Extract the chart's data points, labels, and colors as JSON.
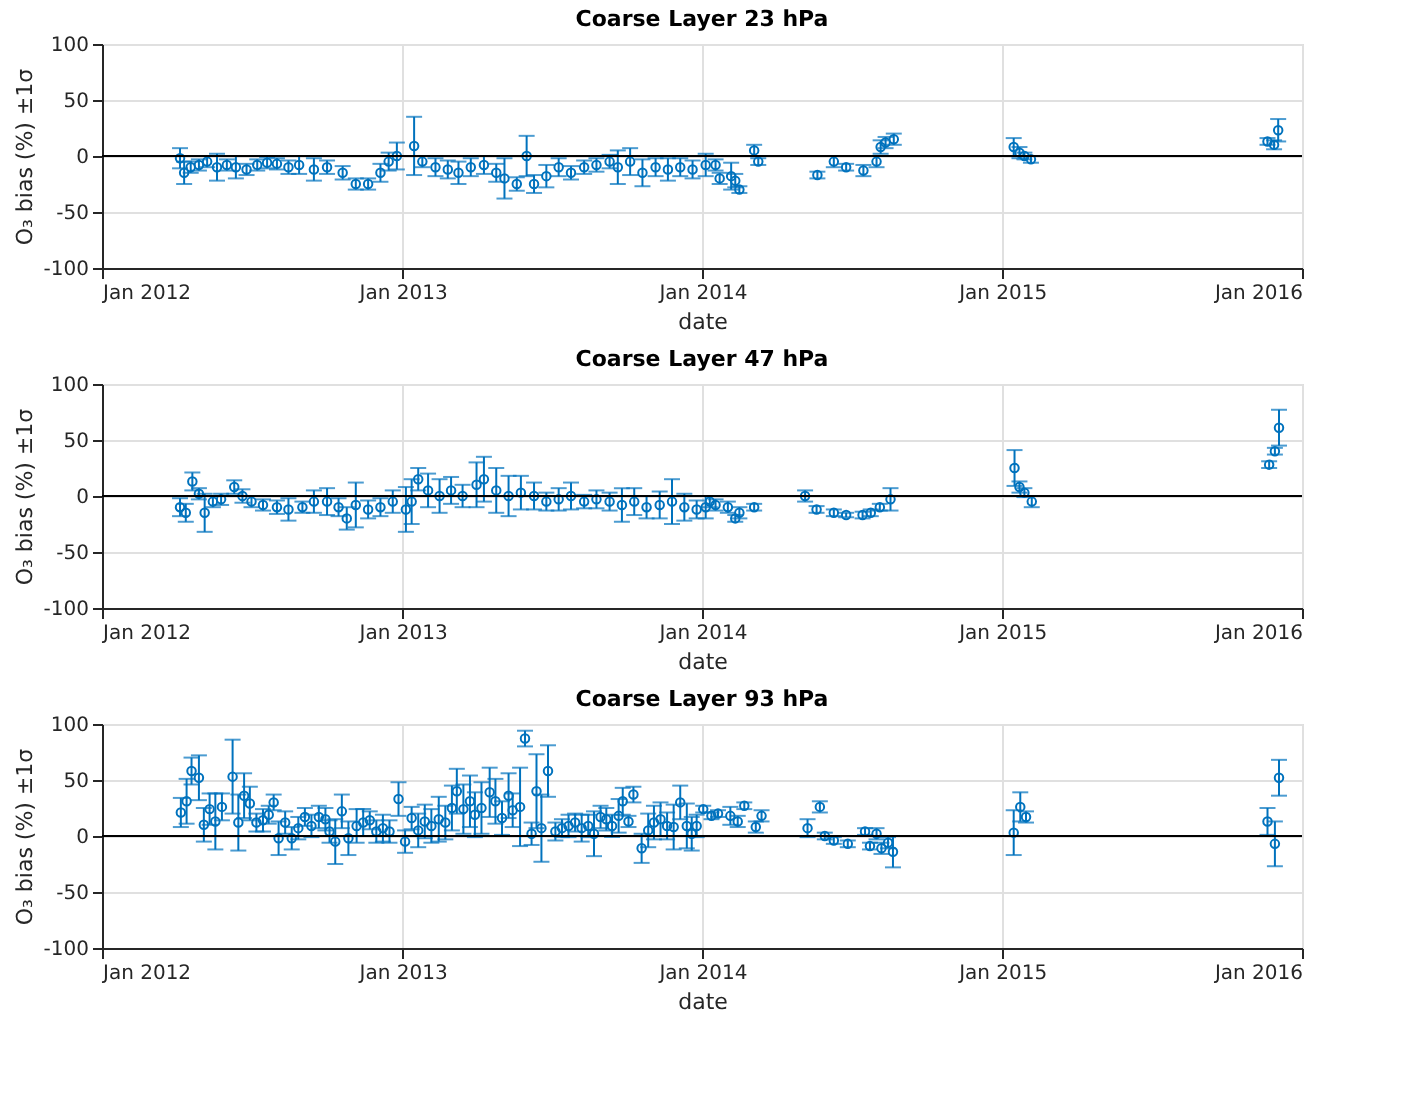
{
  "chart_data": [
    {
      "type": "scatter",
      "title": "Coarse Layer 23 hPa",
      "xlabel": "date",
      "ylabel": "O₃ bias (%) ±1σ",
      "marker": "circle",
      "grid": true,
      "xlim": [
        "2012-01-01",
        "2016-01-01"
      ],
      "xticks": [
        {
          "value": "2012-01-01",
          "label": "Jan 2012"
        },
        {
          "value": "2013-01-01",
          "label": "Jan 2013"
        },
        {
          "value": "2014-01-01",
          "label": "Jan 2014"
        },
        {
          "value": "2015-01-01",
          "label": "Jan 2015"
        },
        {
          "value": "2016-01-01",
          "label": "Jan 2016"
        }
      ],
      "ylim": [
        -100,
        100
      ],
      "yticks": [
        -100,
        -50,
        0,
        50,
        100
      ],
      "ref_lines": [
        {
          "axis": "y",
          "value": 0,
          "color": "#000000"
        }
      ],
      "series": [
        {
          "color": "#0072bd",
          "x": [
            "2012-04-05",
            "2012-04-10",
            "2012-04-18",
            "2012-04-28",
            "2012-05-08",
            "2012-05-20",
            "2012-06-01",
            "2012-06-12",
            "2012-06-25",
            "2012-07-08",
            "2012-07-20",
            "2012-08-01",
            "2012-08-15",
            "2012-08-28",
            "2012-09-15",
            "2012-10-01",
            "2012-10-20",
            "2012-11-05",
            "2012-11-20",
            "2012-12-05",
            "2012-12-15",
            "2012-12-25",
            "2013-01-15",
            "2013-01-25",
            "2013-02-10",
            "2013-02-25",
            "2013-03-10",
            "2013-03-25",
            "2013-04-10",
            "2013-04-25",
            "2013-05-05",
            "2013-05-20",
            "2013-06-01",
            "2013-06-10",
            "2013-06-25",
            "2013-07-10",
            "2013-07-25",
            "2013-08-10",
            "2013-08-25",
            "2013-09-10",
            "2013-09-20",
            "2013-10-05",
            "2013-10-20",
            "2013-11-05",
            "2013-11-20",
            "2013-12-05",
            "2013-12-20",
            "2014-01-05",
            "2014-01-17",
            "2014-01-22",
            "2014-02-05",
            "2014-02-10",
            "2014-02-15",
            "2014-03-05",
            "2014-03-10",
            "2014-05-21",
            "2014-06-10",
            "2014-06-25",
            "2014-07-16",
            "2014-08-01",
            "2014-08-06",
            "2014-08-12",
            "2014-08-22",
            "2015-01-15",
            "2015-01-22",
            "2015-01-28",
            "2015-02-05",
            "2015-11-20",
            "2015-11-28",
            "2015-12-03"
          ],
          "values": [
            -2,
            -15,
            -10,
            -8,
            -5,
            -10,
            -8,
            -10,
            -12,
            -8,
            -6,
            -7,
            -10,
            -8,
            -12,
            -10,
            -15,
            -25,
            -25,
            -15,
            -5,
            0,
            9,
            -5,
            -10,
            -12,
            -15,
            -10,
            -8,
            -15,
            -20,
            -25,
            0,
            -25,
            -18,
            -10,
            -15,
            -10,
            -8,
            -5,
            -10,
            -5,
            -15,
            -10,
            -12,
            -10,
            -12,
            -8,
            -8,
            -20,
            -18,
            -22,
            -30,
            5,
            -5,
            -17,
            -5,
            -10,
            -13,
            -5,
            8,
            12,
            15,
            8,
            3,
            0,
            -3,
            13,
            10,
            23
          ],
          "errors": [
            9,
            10,
            5,
            5,
            5,
            12,
            5,
            10,
            5,
            5,
            5,
            5,
            6,
            8,
            10,
            6,
            6,
            5,
            5,
            8,
            8,
            12,
            26,
            5,
            8,
            8,
            10,
            8,
            8,
            8,
            18,
            6,
            18,
            8,
            10,
            8,
            6,
            6,
            6,
            6,
            15,
            12,
            12,
            8,
            10,
            8,
            8,
            10,
            5,
            5,
            12,
            6,
            3,
            5,
            3,
            3,
            5,
            3,
            5,
            5,
            6,
            5,
            5,
            8,
            5,
            3,
            3,
            3,
            4,
            10
          ]
        }
      ]
    },
    {
      "type": "scatter",
      "title": "Coarse Layer 47 hPa",
      "xlabel": "date",
      "ylabel": "O₃ bias (%) ±1σ",
      "marker": "circle",
      "grid": true,
      "xlim": [
        "2012-01-01",
        "2016-01-01"
      ],
      "xticks": [
        {
          "value": "2012-01-01",
          "label": "Jan 2012"
        },
        {
          "value": "2013-01-01",
          "label": "Jan 2013"
        },
        {
          "value": "2014-01-01",
          "label": "Jan 2014"
        },
        {
          "value": "2015-01-01",
          "label": "Jan 2015"
        },
        {
          "value": "2016-01-01",
          "label": "Jan 2016"
        }
      ],
      "ylim": [
        -100,
        100
      ],
      "yticks": [
        -100,
        -50,
        0,
        50,
        100
      ],
      "ref_lines": [
        {
          "axis": "y",
          "value": 0,
          "color": "#000000"
        }
      ],
      "series": [
        {
          "color": "#0072bd",
          "x": [
            "2012-04-05",
            "2012-04-12",
            "2012-04-20",
            "2012-04-28",
            "2012-05-05",
            "2012-05-15",
            "2012-05-25",
            "2012-06-10",
            "2012-06-20",
            "2012-07-01",
            "2012-07-15",
            "2012-08-01",
            "2012-08-15",
            "2012-09-01",
            "2012-09-15",
            "2012-10-01",
            "2012-10-15",
            "2012-10-25",
            "2012-11-05",
            "2012-11-20",
            "2012-12-05",
            "2012-12-20",
            "2013-01-05",
            "2013-01-12",
            "2013-01-20",
            "2013-02-01",
            "2013-02-15",
            "2013-03-01",
            "2013-03-15",
            "2013-04-01",
            "2013-04-10",
            "2013-04-25",
            "2013-05-10",
            "2013-05-25",
            "2013-06-10",
            "2013-06-25",
            "2013-07-10",
            "2013-07-25",
            "2013-08-10",
            "2013-08-25",
            "2013-09-10",
            "2013-09-25",
            "2013-10-10",
            "2013-10-25",
            "2013-11-10",
            "2013-11-25",
            "2013-12-10",
            "2013-12-25",
            "2014-01-05",
            "2014-01-10",
            "2014-01-17",
            "2014-02-01",
            "2014-02-10",
            "2014-02-15",
            "2014-03-05",
            "2014-05-06",
            "2014-05-20",
            "2014-06-10",
            "2014-06-25",
            "2014-07-15",
            "2014-07-25",
            "2014-08-05",
            "2014-08-18",
            "2015-01-16",
            "2015-01-22",
            "2015-01-28",
            "2015-02-06",
            "2015-11-22",
            "2015-11-29",
            "2015-12-04"
          ],
          "values": [
            -10,
            -15,
            13,
            2,
            -15,
            -5,
            -3,
            8,
            0,
            -5,
            -8,
            -10,
            -12,
            -10,
            -5,
            -5,
            -10,
            -20,
            -8,
            -12,
            -10,
            -5,
            -12,
            -5,
            15,
            5,
            0,
            5,
            0,
            10,
            15,
            5,
            0,
            3,
            0,
            -5,
            -3,
            0,
            -5,
            -3,
            -5,
            -8,
            -5,
            -10,
            -8,
            -5,
            -10,
            -12,
            -10,
            -5,
            -8,
            -10,
            -20,
            -15,
            -10,
            0,
            -12,
            -15,
            -17,
            -17,
            -15,
            -10,
            -3,
            25,
            8,
            3,
            -5,
            28,
            40,
            61
          ],
          "errors": [
            8,
            8,
            8,
            5,
            17,
            5,
            5,
            6,
            6,
            5,
            5,
            6,
            10,
            5,
            10,
            12,
            8,
            10,
            20,
            8,
            8,
            10,
            20,
            20,
            10,
            15,
            15,
            12,
            10,
            20,
            20,
            20,
            18,
            15,
            12,
            8,
            10,
            12,
            6,
            8,
            8,
            15,
            12,
            10,
            12,
            20,
            12,
            8,
            10,
            5,
            5,
            5,
            3,
            5,
            3,
            5,
            3,
            3,
            2,
            3,
            3,
            3,
            10,
            16,
            5,
            4,
            5,
            3,
            3,
            16
          ]
        }
      ]
    },
    {
      "type": "scatter",
      "title": "Coarse Layer 93 hPa",
      "xlabel": "date",
      "ylabel": "O₃ bias (%) ±1σ",
      "marker": "circle",
      "grid": true,
      "xlim": [
        "2012-01-01",
        "2016-01-01"
      ],
      "xticks": [
        {
          "value": "2012-01-01",
          "label": "Jan 2012"
        },
        {
          "value": "2013-01-01",
          "label": "Jan 2013"
        },
        {
          "value": "2014-01-01",
          "label": "Jan 2014"
        },
        {
          "value": "2015-01-01",
          "label": "Jan 2015"
        },
        {
          "value": "2016-01-01",
          "label": "Jan 2016"
        }
      ],
      "ylim": [
        -100,
        100
      ],
      "yticks": [
        -100,
        -50,
        0,
        50,
        100
      ],
      "ref_lines": [
        {
          "axis": "y",
          "value": 0,
          "color": "#000000"
        }
      ],
      "series": [
        {
          "color": "#0072bd",
          "x": [
            "2012-04-06",
            "2012-04-13",
            "2012-04-19",
            "2012-04-28",
            "2012-05-04",
            "2012-05-11",
            "2012-05-18",
            "2012-05-26",
            "2012-06-08",
            "2012-06-15",
            "2012-06-22",
            "2012-06-29",
            "2012-07-07",
            "2012-07-15",
            "2012-07-22",
            "2012-07-28",
            "2012-08-03",
            "2012-08-11",
            "2012-08-19",
            "2012-08-27",
            "2012-09-04",
            "2012-09-12",
            "2012-09-21",
            "2012-09-29",
            "2012-10-04",
            "2012-10-11",
            "2012-10-19",
            "2012-10-27",
            "2012-11-06",
            "2012-11-14",
            "2012-11-22",
            "2012-11-30",
            "2012-12-08",
            "2012-12-16",
            "2012-12-27",
            "2013-01-04",
            "2013-01-12",
            "2013-01-20",
            "2013-01-28",
            "2013-02-05",
            "2013-02-14",
            "2013-02-22",
            "2013-03-02",
            "2013-03-08",
            "2013-03-16",
            "2013-03-24",
            "2013-03-30",
            "2013-04-07",
            "2013-04-17",
            "2013-04-24",
            "2013-05-02",
            "2013-05-10",
            "2013-05-15",
            "2013-05-24",
            "2013-05-30",
            "2013-06-07",
            "2013-06-13",
            "2013-06-19",
            "2013-06-27",
            "2013-07-06",
            "2013-07-14",
            "2013-07-22",
            "2013-07-30",
            "2013-08-07",
            "2013-08-15",
            "2013-08-22",
            "2013-08-30",
            "2013-09-06",
            "2013-09-13",
            "2013-09-21",
            "2013-09-26",
            "2013-10-03",
            "2013-10-09",
            "2013-10-19",
            "2013-10-27",
            "2013-11-03",
            "2013-11-11",
            "2013-11-19",
            "2013-11-27",
            "2013-12-05",
            "2013-12-13",
            "2013-12-19",
            "2013-12-25",
            "2014-01-02",
            "2014-01-12",
            "2014-01-20",
            "2014-02-04",
            "2014-02-13",
            "2014-02-21",
            "2014-03-07",
            "2014-03-14",
            "2014-05-09",
            "2014-05-24",
            "2014-05-30",
            "2014-06-10",
            "2014-06-27",
            "2014-07-18",
            "2014-07-24",
            "2014-08-01",
            "2014-08-07",
            "2014-08-15",
            "2014-08-21",
            "2015-01-15",
            "2015-01-23",
            "2015-01-30",
            "2015-11-20",
            "2015-11-29",
            "2015-12-04"
          ],
          "values": [
            21,
            31,
            58,
            52,
            10,
            24,
            13,
            26,
            53,
            12,
            36,
            29,
            12,
            14,
            19,
            30,
            -2,
            12,
            -2,
            7,
            17,
            9,
            17,
            15,
            4,
            -5,
            22,
            -2,
            9,
            12,
            14,
            4,
            7,
            4,
            33,
            -5,
            16,
            5,
            13,
            9,
            15,
            12,
            25,
            40,
            24,
            31,
            19,
            25,
            39,
            31,
            16,
            36,
            23,
            26,
            87,
            2,
            40,
            7,
            58,
            4,
            7,
            9,
            12,
            7,
            9,
            2,
            17,
            15,
            9,
            18,
            31,
            13,
            37,
            -11,
            5,
            12,
            15,
            9,
            8,
            30,
            9,
            2,
            9,
            24,
            18,
            20,
            18,
            13,
            27,
            8,
            18,
            7,
            26,
            0,
            -4,
            -7,
            4,
            -9,
            2,
            -11,
            -6,
            -14,
            3,
            26,
            17,
            13,
            -7,
            52
          ],
          "errors": [
            13,
            20,
            12,
            20,
            15,
            14,
            25,
            12,
            33,
            25,
            20,
            15,
            8,
            10,
            8,
            7,
            15,
            10,
            10,
            10,
            8,
            10,
            10,
            10,
            10,
            20,
            15,
            15,
            15,
            12,
            8,
            10,
            12,
            10,
            15,
            10,
            10,
            15,
            15,
            15,
            20,
            15,
            20,
            20,
            22,
            23,
            20,
            23,
            22,
            20,
            15,
            20,
            15,
            35,
            7,
            10,
            33,
            30,
            23,
            8,
            8,
            10,
            8,
            12,
            10,
            20,
            10,
            10,
            10,
            15,
            12,
            5,
            7,
            13,
            15,
            15,
            15,
            12,
            20,
            15,
            20,
            15,
            10,
            3,
            3,
            3,
            8,
            5,
            3,
            5,
            5,
            8,
            5,
            3,
            3,
            3,
            3,
            3,
            5,
            5,
            5,
            14,
            20,
            13,
            5,
            12,
            20,
            16
          ]
        }
      ]
    }
  ]
}
